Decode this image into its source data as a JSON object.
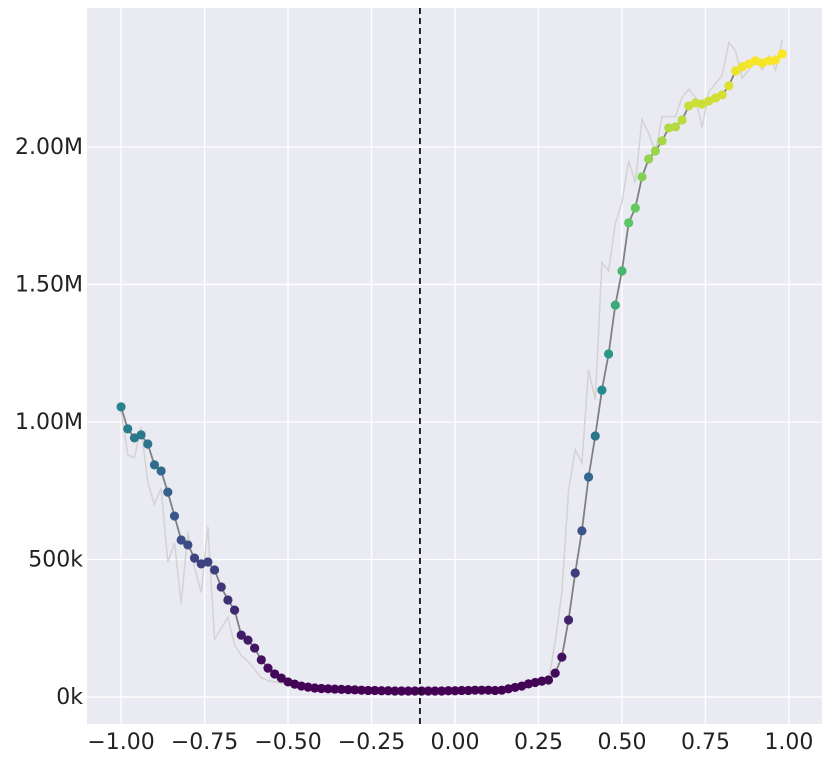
{
  "chart_data": {
    "type": "scatter-line",
    "x": [
      -1.0,
      -0.98,
      -0.96,
      -0.94,
      -0.92,
      -0.9,
      -0.88,
      -0.86,
      -0.84,
      -0.82,
      -0.8,
      -0.78,
      -0.76,
      -0.74,
      -0.72,
      -0.7,
      -0.68,
      -0.66,
      -0.64,
      -0.62,
      -0.6,
      -0.58,
      -0.56,
      -0.54,
      -0.52,
      -0.5,
      -0.48,
      -0.46,
      -0.44,
      -0.42,
      -0.4,
      -0.38,
      -0.36,
      -0.34,
      -0.32,
      -0.3,
      -0.28,
      -0.26,
      -0.24,
      -0.22,
      -0.2,
      -0.18,
      -0.16,
      -0.14,
      -0.12,
      -0.1,
      -0.08,
      -0.06,
      -0.04,
      -0.02,
      0.0,
      0.02,
      0.04,
      0.06,
      0.08,
      0.1,
      0.12,
      0.14,
      0.16,
      0.18,
      0.2,
      0.22,
      0.24,
      0.26,
      0.28,
      0.3,
      0.32,
      0.34,
      0.36,
      0.38,
      0.4,
      0.42,
      0.44,
      0.46,
      0.48,
      0.5,
      0.52,
      0.54,
      0.56,
      0.58,
      0.6,
      0.62,
      0.64,
      0.66,
      0.68,
      0.7,
      0.72,
      0.74,
      0.76,
      0.78,
      0.8,
      0.82,
      0.84,
      0.86,
      0.88,
      0.9,
      0.92,
      0.94,
      0.96,
      0.98
    ],
    "series": [
      {
        "role": "raw",
        "color": "#d3d3d3",
        "values": [
          1040000,
          880000,
          870000,
          980000,
          780000,
          700000,
          760000,
          490000,
          560000,
          340000,
          600000,
          470000,
          380000,
          620000,
          210000,
          250000,
          290000,
          190000,
          150000,
          130000,
          100000,
          70000,
          60000,
          55000,
          50000,
          45000,
          47000,
          40000,
          36000,
          33000,
          31000,
          30000,
          29000,
          28000,
          27000,
          26000,
          25000,
          24000,
          24000,
          23000,
          23000,
          22000,
          22000,
          22000,
          22000,
          22000,
          22000,
          22000,
          22000,
          23000,
          23000,
          24000,
          24000,
          25000,
          25000,
          25000,
          24000,
          25000,
          30000,
          35000,
          40000,
          48000,
          53000,
          50000,
          60000,
          200000,
          380000,
          750000,
          900000,
          850000,
          1190000,
          1080000,
          1580000,
          1550000,
          1720000,
          1800000,
          1950000,
          1870000,
          2100000,
          2050000,
          1980000,
          2110000,
          2110000,
          2110000,
          2180000,
          2210000,
          2180000,
          2070000,
          2200000,
          2230000,
          2260000,
          2380000,
          2350000,
          2250000,
          2280000,
          2320000,
          2280000,
          2330000,
          2280000,
          2390000
        ]
      },
      {
        "role": "smoothed",
        "color": "#808080",
        "colormap": "viridis",
        "values": [
          1055000,
          975000,
          942000,
          953000,
          920000,
          844000,
          822000,
          745000,
          658000,
          571000,
          553000,
          505000,
          484000,
          491000,
          462000,
          400000,
          353000,
          316000,
          225000,
          207000,
          178000,
          135000,
          105000,
          84000,
          69000,
          55000,
          47000,
          40000,
          36000,
          33000,
          31000,
          30000,
          29000,
          28000,
          27000,
          26000,
          25000,
          24000,
          24000,
          23000,
          23000,
          22000,
          22000,
          22000,
          22000,
          22000,
          22000,
          22000,
          22000,
          23000,
          23000,
          24000,
          24000,
          25000,
          25000,
          25000,
          24000,
          25000,
          30000,
          35000,
          40000,
          48000,
          53000,
          58000,
          62000,
          87000,
          145000,
          280000,
          451000,
          604000,
          800000,
          949000,
          1116000,
          1247000,
          1425000,
          1549000,
          1724000,
          1778000,
          1891000,
          1956000,
          1985000,
          2022000,
          2069000,
          2073000,
          2098000,
          2149000,
          2160000,
          2156000,
          2167000,
          2178000,
          2189000,
          2222000,
          2276000,
          2291000,
          2302000,
          2313000,
          2305000,
          2313000,
          2316000,
          2338000
        ]
      }
    ],
    "vline": -0.105,
    "xlim": [
      -1.102,
      1.099
    ],
    "ylim": [
      -98000,
      2505000
    ],
    "xticks": [
      {
        "value": -1,
        "label": "−1.00"
      },
      {
        "value": -0.75,
        "label": "−0.75"
      },
      {
        "value": -0.5,
        "label": "−0.50"
      },
      {
        "value": -0.25,
        "label": "−0.25"
      },
      {
        "value": 0,
        "label": "0.00"
      },
      {
        "value": 0.25,
        "label": "0.25"
      },
      {
        "value": 0.5,
        "label": "0.50"
      },
      {
        "value": 0.75,
        "label": "0.75"
      },
      {
        "value": 1,
        "label": "1.00"
      }
    ],
    "yticks": [
      {
        "value": 0,
        "label": "0k"
      },
      {
        "value": 500000,
        "label": "500k"
      },
      {
        "value": 1000000,
        "label": "1.00M"
      },
      {
        "value": 1500000,
        "label": "1.50M"
      },
      {
        "value": 2000000,
        "label": "2.00M"
      }
    ],
    "grid": true
  }
}
